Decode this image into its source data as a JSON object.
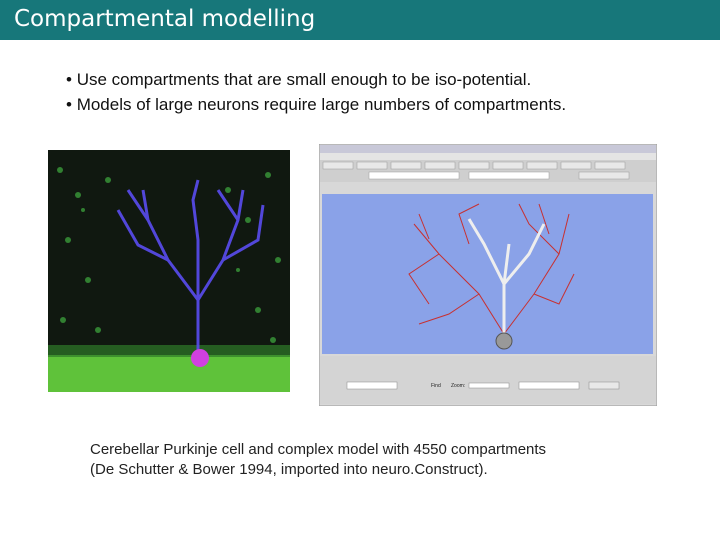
{
  "header": {
    "title": "Compartmental modelling"
  },
  "bullets": [
    "Use compartments that are small enough to be iso-potential.",
    "Models of large neurons require large numbers of compartments."
  ],
  "window": {
    "find": "Find",
    "zoom": "Zoom:"
  },
  "caption": [
    "Cerebellar Purkinje cell and complex model with 4550 compartments",
    "(De Schutter & Bower 1994, imported into neuro.Construct)."
  ]
}
